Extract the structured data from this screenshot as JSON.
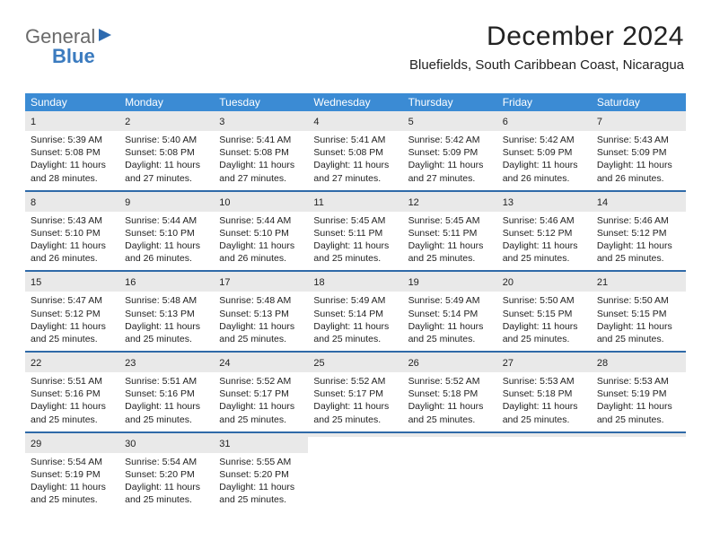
{
  "logo": {
    "part1": "General",
    "part2": "Blue"
  },
  "header": {
    "title": "December 2024",
    "subtitle": "Bluefields, South Caribbean Coast, Nicaragua"
  },
  "style": {
    "header_bg": "#3b8bd4",
    "header_fg": "#ffffff",
    "row_divider": "#2f6aa8",
    "daynum_bg": "#e9e9e9",
    "page_bg": "#ffffff",
    "text_color": "#222222",
    "title_fontsize": 30,
    "subtitle_fontsize": 15,
    "dayname_fontsize": 12,
    "daynum_fontsize": 11,
    "body_fontsize": 10.5,
    "columns": 7
  },
  "daynames": [
    "Sunday",
    "Monday",
    "Tuesday",
    "Wednesday",
    "Thursday",
    "Friday",
    "Saturday"
  ],
  "days": [
    {
      "n": "1",
      "sr": "5:39 AM",
      "ss": "5:08 PM",
      "dl": "11 hours and 28 minutes."
    },
    {
      "n": "2",
      "sr": "5:40 AM",
      "ss": "5:08 PM",
      "dl": "11 hours and 27 minutes."
    },
    {
      "n": "3",
      "sr": "5:41 AM",
      "ss": "5:08 PM",
      "dl": "11 hours and 27 minutes."
    },
    {
      "n": "4",
      "sr": "5:41 AM",
      "ss": "5:08 PM",
      "dl": "11 hours and 27 minutes."
    },
    {
      "n": "5",
      "sr": "5:42 AM",
      "ss": "5:09 PM",
      "dl": "11 hours and 27 minutes."
    },
    {
      "n": "6",
      "sr": "5:42 AM",
      "ss": "5:09 PM",
      "dl": "11 hours and 26 minutes."
    },
    {
      "n": "7",
      "sr": "5:43 AM",
      "ss": "5:09 PM",
      "dl": "11 hours and 26 minutes."
    },
    {
      "n": "8",
      "sr": "5:43 AM",
      "ss": "5:10 PM",
      "dl": "11 hours and 26 minutes."
    },
    {
      "n": "9",
      "sr": "5:44 AM",
      "ss": "5:10 PM",
      "dl": "11 hours and 26 minutes."
    },
    {
      "n": "10",
      "sr": "5:44 AM",
      "ss": "5:10 PM",
      "dl": "11 hours and 26 minutes."
    },
    {
      "n": "11",
      "sr": "5:45 AM",
      "ss": "5:11 PM",
      "dl": "11 hours and 25 minutes."
    },
    {
      "n": "12",
      "sr": "5:45 AM",
      "ss": "5:11 PM",
      "dl": "11 hours and 25 minutes."
    },
    {
      "n": "13",
      "sr": "5:46 AM",
      "ss": "5:12 PM",
      "dl": "11 hours and 25 minutes."
    },
    {
      "n": "14",
      "sr": "5:46 AM",
      "ss": "5:12 PM",
      "dl": "11 hours and 25 minutes."
    },
    {
      "n": "15",
      "sr": "5:47 AM",
      "ss": "5:12 PM",
      "dl": "11 hours and 25 minutes."
    },
    {
      "n": "16",
      "sr": "5:48 AM",
      "ss": "5:13 PM",
      "dl": "11 hours and 25 minutes."
    },
    {
      "n": "17",
      "sr": "5:48 AM",
      "ss": "5:13 PM",
      "dl": "11 hours and 25 minutes."
    },
    {
      "n": "18",
      "sr": "5:49 AM",
      "ss": "5:14 PM",
      "dl": "11 hours and 25 minutes."
    },
    {
      "n": "19",
      "sr": "5:49 AM",
      "ss": "5:14 PM",
      "dl": "11 hours and 25 minutes."
    },
    {
      "n": "20",
      "sr": "5:50 AM",
      "ss": "5:15 PM",
      "dl": "11 hours and 25 minutes."
    },
    {
      "n": "21",
      "sr": "5:50 AM",
      "ss": "5:15 PM",
      "dl": "11 hours and 25 minutes."
    },
    {
      "n": "22",
      "sr": "5:51 AM",
      "ss": "5:16 PM",
      "dl": "11 hours and 25 minutes."
    },
    {
      "n": "23",
      "sr": "5:51 AM",
      "ss": "5:16 PM",
      "dl": "11 hours and 25 minutes."
    },
    {
      "n": "24",
      "sr": "5:52 AM",
      "ss": "5:17 PM",
      "dl": "11 hours and 25 minutes."
    },
    {
      "n": "25",
      "sr": "5:52 AM",
      "ss": "5:17 PM",
      "dl": "11 hours and 25 minutes."
    },
    {
      "n": "26",
      "sr": "5:52 AM",
      "ss": "5:18 PM",
      "dl": "11 hours and 25 minutes."
    },
    {
      "n": "27",
      "sr": "5:53 AM",
      "ss": "5:18 PM",
      "dl": "11 hours and 25 minutes."
    },
    {
      "n": "28",
      "sr": "5:53 AM",
      "ss": "5:19 PM",
      "dl": "11 hours and 25 minutes."
    },
    {
      "n": "29",
      "sr": "5:54 AM",
      "ss": "5:19 PM",
      "dl": "11 hours and 25 minutes."
    },
    {
      "n": "30",
      "sr": "5:54 AM",
      "ss": "5:20 PM",
      "dl": "11 hours and 25 minutes."
    },
    {
      "n": "31",
      "sr": "5:55 AM",
      "ss": "5:20 PM",
      "dl": "11 hours and 25 minutes."
    }
  ],
  "labels": {
    "sunrise": "Sunrise:",
    "sunset": "Sunset:",
    "daylight": "Daylight:"
  }
}
